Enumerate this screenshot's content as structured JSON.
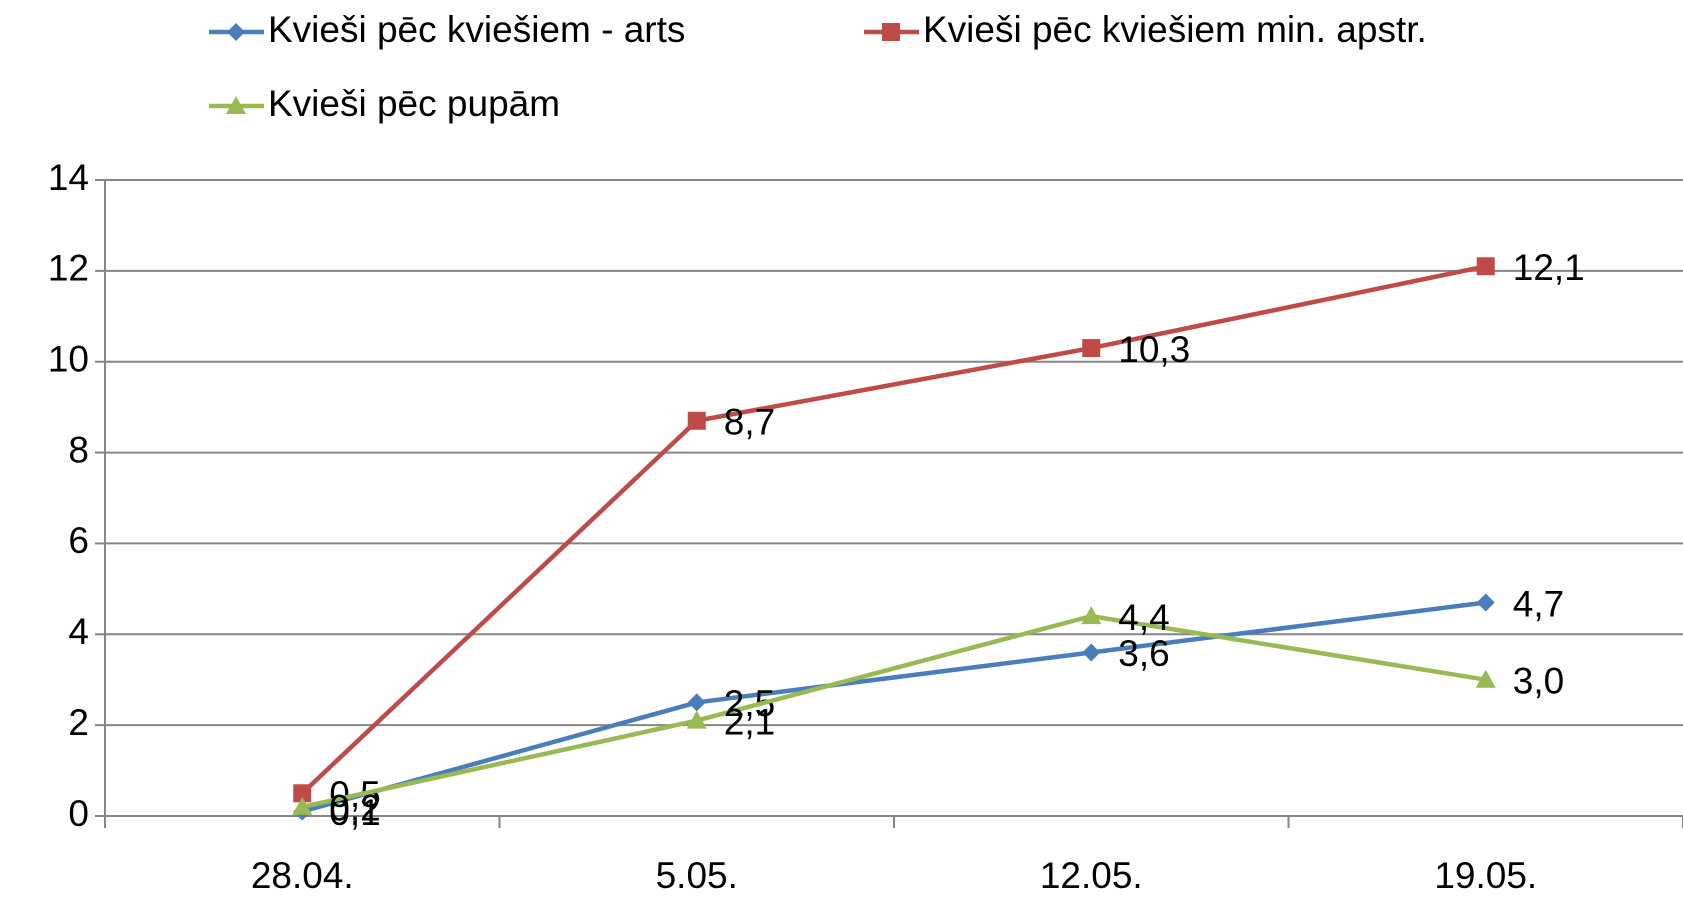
{
  "chart_data": {
    "type": "line",
    "categories": [
      "28.04.",
      "5.05.",
      "12.05.",
      "19.05."
    ],
    "series": [
      {
        "name": "Kvieši pēc kviešiem - arts",
        "color": "#4a7ebb",
        "marker": "diamond",
        "values": [
          0.1,
          2.5,
          3.6,
          4.7
        ],
        "value_labels": [
          "0,1",
          "2,5",
          "3,6",
          "4,7"
        ]
      },
      {
        "name": "Kvieši pēc kviešiem min. apstr.",
        "color": "#be4b48",
        "marker": "square",
        "values": [
          0.5,
          8.7,
          10.3,
          12.1
        ],
        "value_labels": [
          "0,5",
          "8,7",
          "10,3",
          "12,1"
        ]
      },
      {
        "name": "Kvieši pēc pupām",
        "color": "#98b954",
        "marker": "triangle",
        "values": [
          0.2,
          2.1,
          4.4,
          3.0
        ],
        "value_labels": [
          "0,2",
          "2,1",
          "4,4",
          "3,0"
        ]
      }
    ],
    "ylim": [
      0,
      14
    ],
    "yticks": [
      0,
      2,
      4,
      6,
      8,
      10,
      12,
      14
    ],
    "grid": true,
    "legend": "top"
  }
}
